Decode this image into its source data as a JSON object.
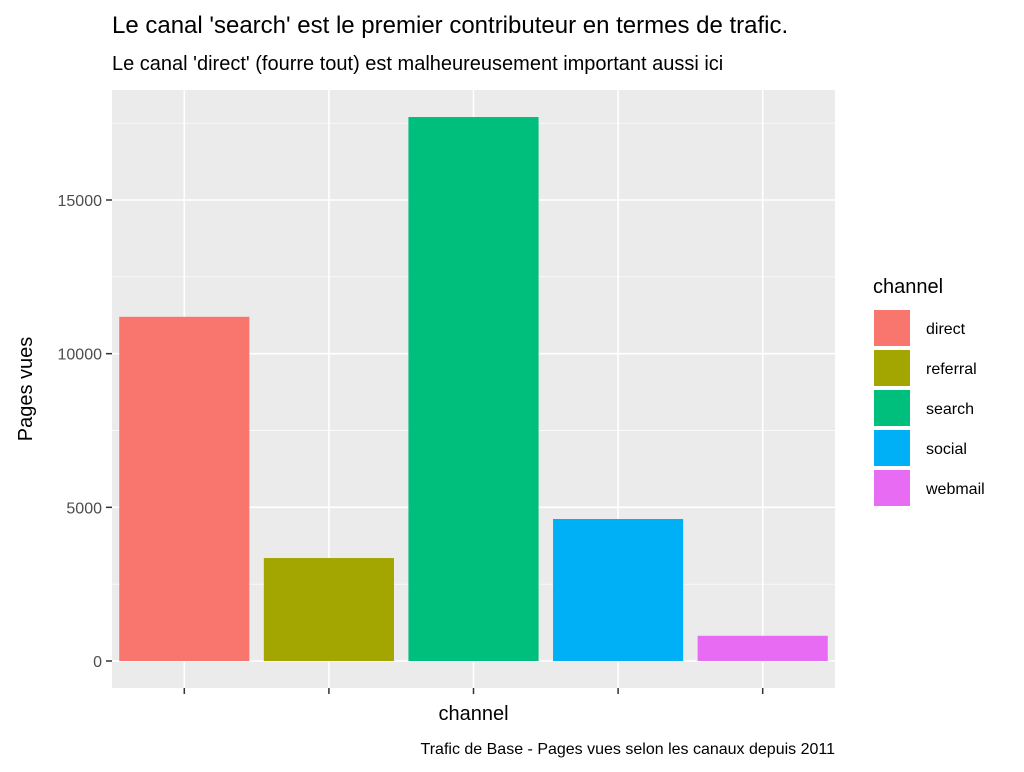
{
  "chart_data": {
    "type": "bar",
    "title": "Le canal 'search' est le premier contributeur en termes de trafic.",
    "subtitle": "Le canal 'direct' (fourre tout) est malheureusement important aussi ici",
    "caption": "Trafic de Base - Pages vues selon les canaux depuis 2011",
    "xlabel": "channel",
    "ylabel": "Pages vues",
    "categories": [
      "direct",
      "referral",
      "search",
      "social",
      "webmail"
    ],
    "values": [
      11200,
      3350,
      17700,
      4620,
      820
    ],
    "colors": [
      "#F8766D",
      "#A3A500",
      "#00BF7D",
      "#00B0F6",
      "#E76BF3"
    ],
    "ylim": [
      0,
      18500
    ],
    "yticks": [
      0,
      5000,
      10000,
      15000
    ],
    "ytick_labels": [
      "0",
      "5000",
      "10000",
      "15000"
    ],
    "show_x_tick_labels": false,
    "grid": true,
    "legend": {
      "title": "channel",
      "position": "right",
      "entries": [
        "direct",
        "referral",
        "search",
        "social",
        "webmail"
      ]
    },
    "panel_background": "#EBEBEB",
    "grid_color": "#FFFFFF"
  }
}
